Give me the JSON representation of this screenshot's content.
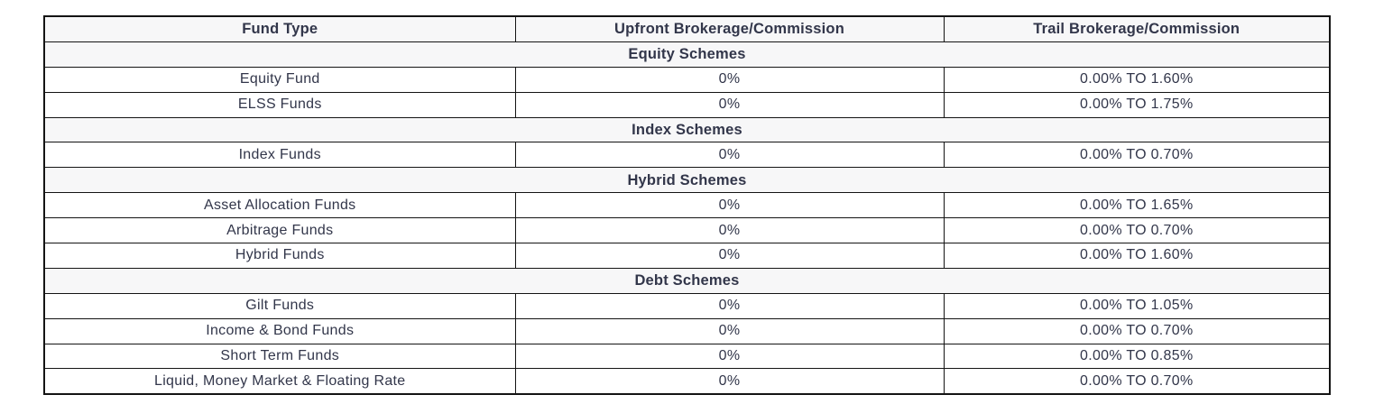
{
  "colors": {
    "text": "#32364a",
    "border": "#141414",
    "header_row_bg": "#f7f7f8",
    "data_row_bg": "#ffffff",
    "page_bg": "#ffffff"
  },
  "table": {
    "columns": [
      "Fund Type",
      "Upfront Brokerage/Commission",
      "Trail Brokerage/Commission"
    ],
    "sections": [
      {
        "title": "Equity Schemes",
        "rows": [
          {
            "fund": "Equity Fund",
            "upfront": "0%",
            "trail": "0.00% TO 1.60%"
          },
          {
            "fund": "ELSS Funds",
            "upfront": "0%",
            "trail": "0.00% TO 1.75%"
          }
        ]
      },
      {
        "title": "Index Schemes",
        "rows": [
          {
            "fund": "Index Funds",
            "upfront": "0%",
            "trail": "0.00% TO 0.70%"
          }
        ]
      },
      {
        "title": "Hybrid Schemes",
        "rows": [
          {
            "fund": "Asset Allocation Funds",
            "upfront": "0%",
            "trail": "0.00% TO 1.65%"
          },
          {
            "fund": "Arbitrage Funds",
            "upfront": "0%",
            "trail": "0.00% TO 0.70%"
          },
          {
            "fund": "Hybrid Funds",
            "upfront": "0%",
            "trail": "0.00% TO 1.60%"
          }
        ]
      },
      {
        "title": "Debt Schemes",
        "rows": [
          {
            "fund": "Gilt Funds",
            "upfront": "0%",
            "trail": "0.00% TO 1.05%"
          },
          {
            "fund": "Income & Bond Funds",
            "upfront": "0%",
            "trail": "0.00% TO 0.70%"
          },
          {
            "fund": "Short Term Funds",
            "upfront": "0%",
            "trail": "0.00% TO 0.85%"
          },
          {
            "fund": "Liquid, Money Market & Floating Rate",
            "upfront": "0%",
            "trail": "0.00% TO 0.70%"
          }
        ]
      }
    ]
  }
}
